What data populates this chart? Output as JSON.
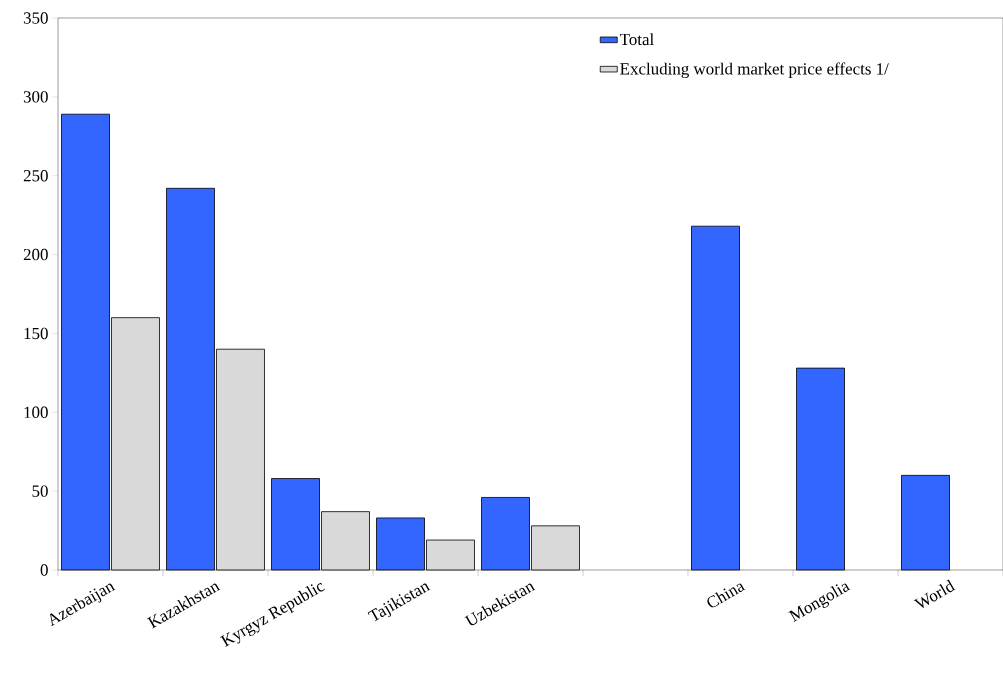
{
  "chart_data": {
    "type": "bar",
    "categories": [
      "Azerbaijan",
      "Kazakhstan",
      "Kyrgyz Republic",
      "Tajikistan",
      "Uzbekistan",
      null,
      "China",
      "Mongolia",
      "World"
    ],
    "series": [
      {
        "name": "Total",
        "color": "#3366ff",
        "values": [
          289,
          242,
          58,
          33,
          46,
          null,
          218,
          128,
          60
        ]
      },
      {
        "name": "Excluding world market price effects 1/",
        "color": "#d9d9d9",
        "values": [
          160,
          140,
          37,
          19,
          28,
          null,
          null,
          null,
          null
        ]
      }
    ],
    "ylim": [
      0,
      350
    ],
    "yticks": [
      0,
      50,
      100,
      150,
      200,
      250,
      300,
      350
    ],
    "grid": false,
    "legend": "top right"
  }
}
